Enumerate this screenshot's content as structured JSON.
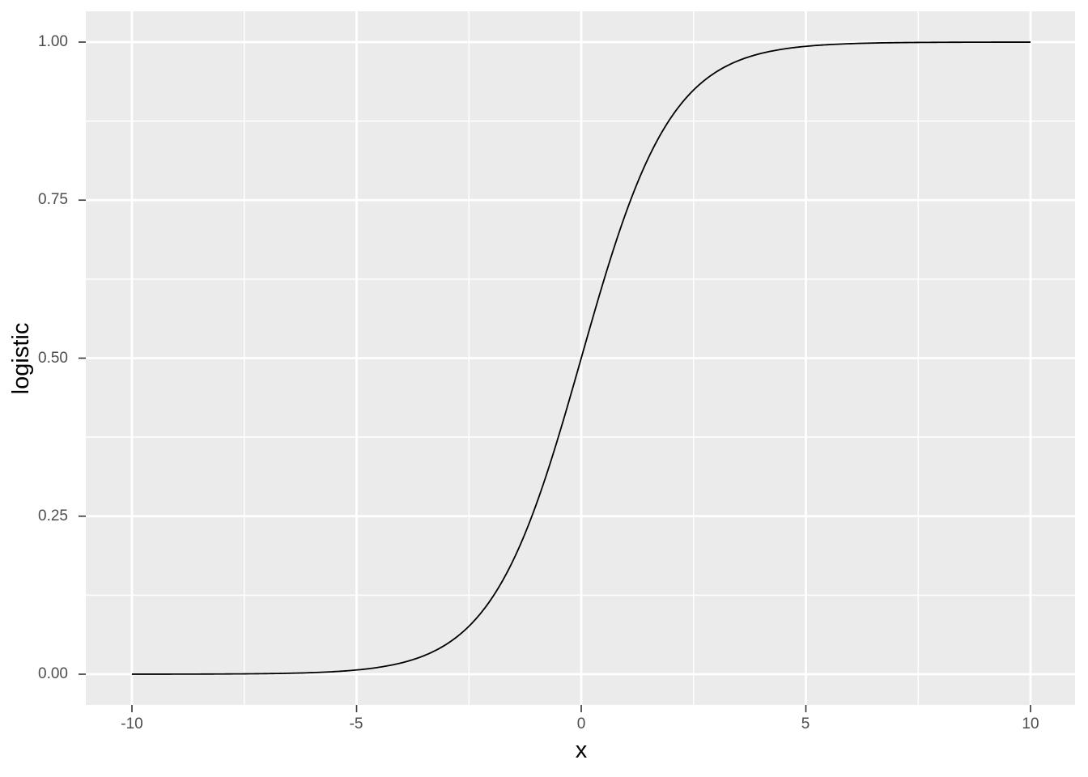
{
  "figure": {
    "background_color": "#FFFFFF",
    "panel_background_color": "#EBEBEB",
    "grid_color": "#FFFFFF",
    "axis_tick_color": "#333333",
    "tick_label_color": "#4D4D4D",
    "axis_title_color": "#000000",
    "line_color": "#000000"
  },
  "chart_data": {
    "type": "line",
    "title": "",
    "xlabel": "x",
    "ylabel": "logistic",
    "xlim": [
      -10,
      10
    ],
    "ylim": [
      0,
      1
    ],
    "x_ticks": [
      -10,
      -5,
      0,
      5,
      10
    ],
    "x_tick_labels": [
      "-10",
      "-5",
      "0",
      "5",
      "10"
    ],
    "y_ticks": [
      0,
      0.25,
      0.5,
      0.75,
      1
    ],
    "y_tick_labels": [
      "0.00",
      "0.25",
      "0.50",
      "0.75",
      "1.00"
    ],
    "grid": "major-and-minor",
    "legend": "none",
    "series": [
      {
        "name": "logistic",
        "formula": "y = 1/(1+exp(-x))",
        "x": [
          -10,
          -9.5,
          -9,
          -8.5,
          -8,
          -7.5,
          -7,
          -6.5,
          -6,
          -5.5,
          -5,
          -4.5,
          -4,
          -3.5,
          -3,
          -2.5,
          -2,
          -1.5,
          -1,
          -0.5,
          0,
          0.5,
          1,
          1.5,
          2,
          2.5,
          3,
          3.5,
          4,
          4.5,
          5,
          5.5,
          6,
          6.5,
          7,
          7.5,
          8,
          8.5,
          9,
          9.5,
          10
        ],
        "y": [
          0.0,
          0.0001,
          0.0001,
          0.0002,
          0.0003,
          0.0006,
          0.0009,
          0.0015,
          0.0025,
          0.0041,
          0.0067,
          0.011,
          0.018,
          0.0293,
          0.0474,
          0.0759,
          0.1192,
          0.1824,
          0.2689,
          0.3775,
          0.5,
          0.6225,
          0.7311,
          0.8176,
          0.8808,
          0.9241,
          0.9526,
          0.9707,
          0.982,
          0.989,
          0.9933,
          0.9959,
          0.9975,
          0.9985,
          0.9991,
          0.9994,
          0.9997,
          0.9998,
          0.9999,
          0.9999,
          1.0
        ]
      }
    ]
  }
}
